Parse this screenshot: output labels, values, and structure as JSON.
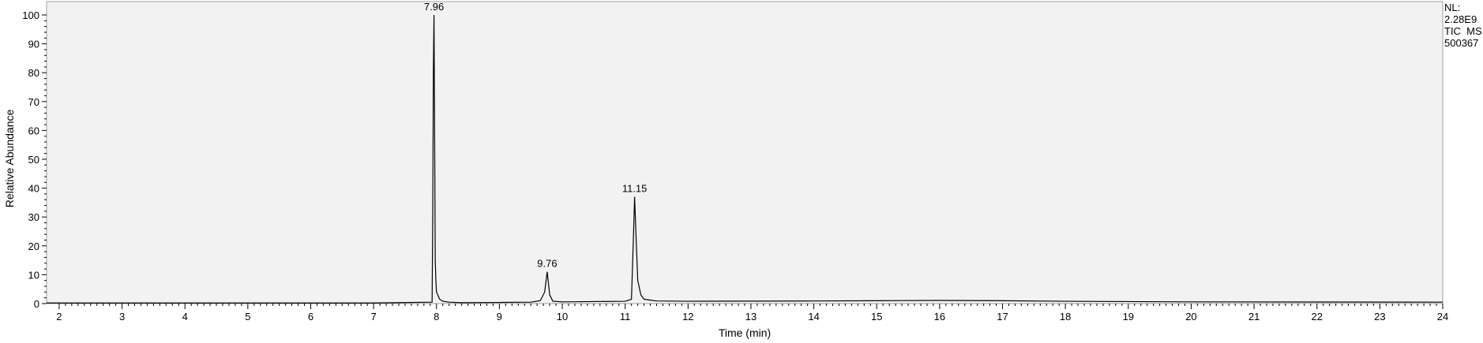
{
  "chart_data": {
    "type": "line",
    "xlabel": "Time (min)",
    "ylabel": "Relative Abundance",
    "xlim": [
      1.8,
      24
    ],
    "ylim": [
      0,
      100
    ],
    "x_ticks": [
      2,
      3,
      4,
      5,
      6,
      7,
      8,
      9,
      10,
      11,
      12,
      13,
      14,
      15,
      16,
      17,
      18,
      19,
      20,
      21,
      22,
      23,
      24
    ],
    "y_ticks": [
      0,
      10,
      20,
      30,
      40,
      50,
      60,
      70,
      80,
      90,
      100
    ],
    "grid": false,
    "background": "#f2f2f2",
    "line_color": "#000000",
    "side_info": [
      "NL:",
      "2.28E9",
      "TIC  MS",
      "500367"
    ],
    "peak_labels": [
      {
        "text": "7.96",
        "x": 7.96,
        "y": 100
      },
      {
        "text": "9.76",
        "x": 9.76,
        "y": 11
      },
      {
        "text": "11.15",
        "x": 11.15,
        "y": 37
      }
    ],
    "series": [
      {
        "x": [
          1.8,
          7.0,
          7.93,
          7.94,
          7.95,
          7.96,
          7.97,
          7.98,
          7.99,
          8.0,
          8.05,
          8.1,
          8.2,
          8.4,
          9.0,
          9.5,
          9.65,
          9.72,
          9.76,
          9.8,
          9.85,
          10.0,
          10.5,
          11.0,
          11.1,
          11.13,
          11.15,
          11.17,
          11.2,
          11.25,
          11.3,
          11.5,
          12.0,
          14.0,
          15.0,
          16.0,
          17.0,
          18.0,
          20.0,
          24.0
        ],
        "y": [
          0.2,
          0.2,
          0.5,
          30,
          80,
          100,
          60,
          15,
          8,
          4,
          1.5,
          0.8,
          0.5,
          0.3,
          0.4,
          0.5,
          1,
          4,
          11,
          3,
          0.8,
          0.6,
          0.7,
          0.8,
          1.5,
          22,
          37,
          25,
          8,
          3,
          1.5,
          0.9,
          0.8,
          0.9,
          1.0,
          1.1,
          1.0,
          0.8,
          0.6,
          0.5
        ]
      }
    ]
  }
}
